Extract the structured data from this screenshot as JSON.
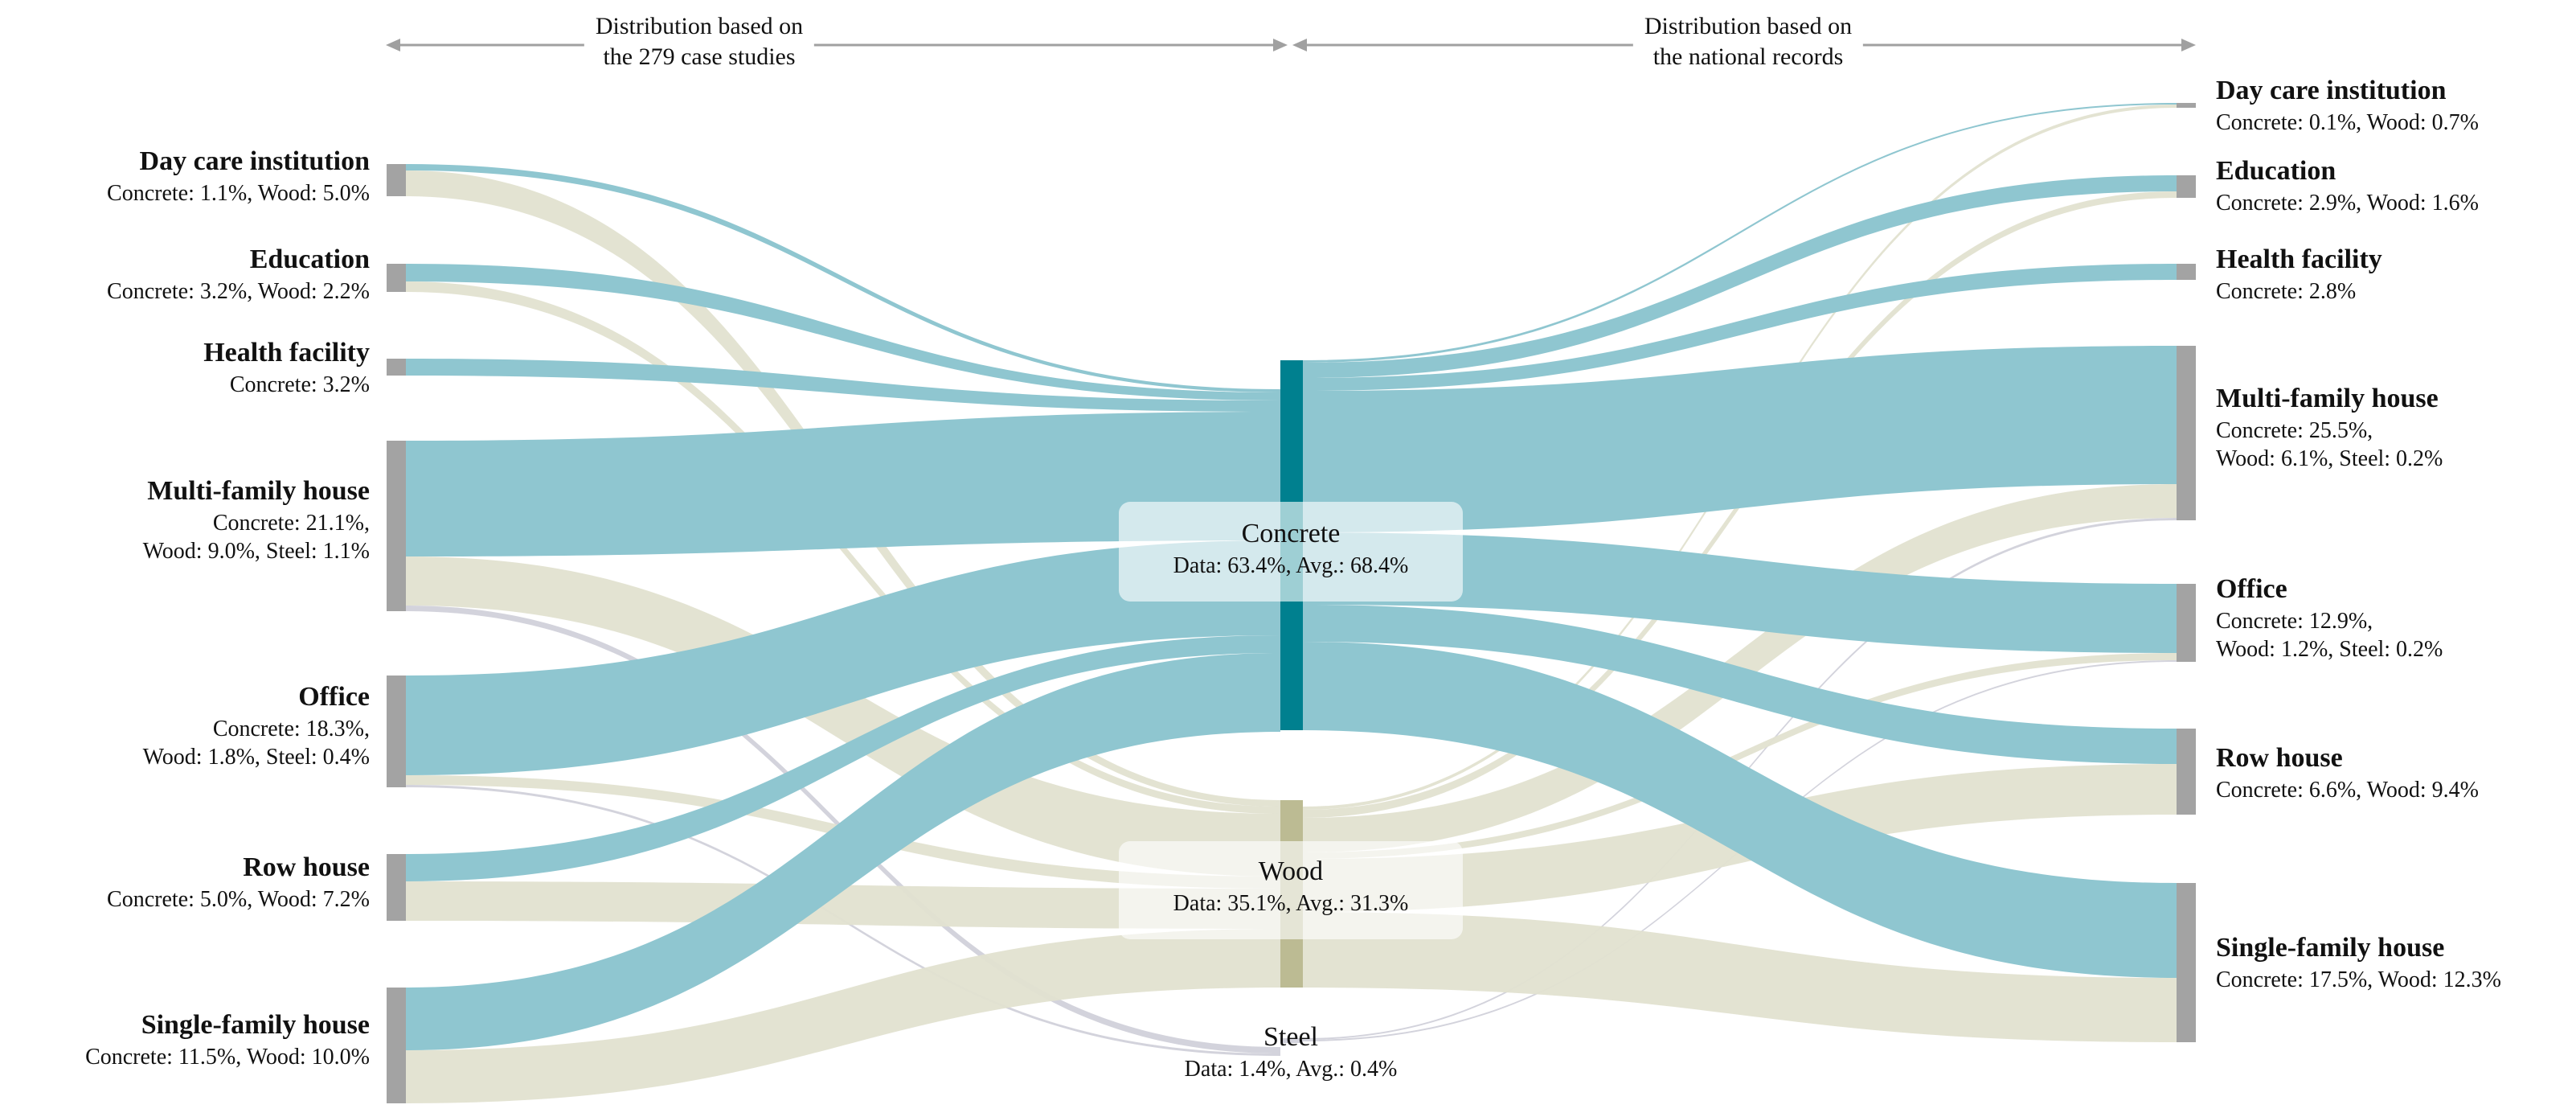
{
  "headers": {
    "left": [
      "Distribution based on",
      "the 279 case studies"
    ],
    "right": [
      "Distribution based on",
      "the national records"
    ]
  },
  "colors": {
    "concrete": "#8fc6d0",
    "concrete_node": "#00808f",
    "wood": "#e2e2d0",
    "wood_node": "#bcbb93",
    "steel": "#d3d3dc",
    "side_node": "#a3a3a3"
  },
  "left_nodes": [
    {
      "title": "Day care institution",
      "lines": [
        "Concrete: 1.1%, Wood: 5.0%"
      ]
    },
    {
      "title": "Education",
      "lines": [
        "Concrete: 3.2%, Wood: 2.2%"
      ]
    },
    {
      "title": "Health facility",
      "lines": [
        "Concrete: 3.2%"
      ]
    },
    {
      "title": "Multi-family house",
      "lines": [
        "Concrete: 21.1%,",
        "Wood: 9.0%, Steel: 1.1%"
      ]
    },
    {
      "title": "Office",
      "lines": [
        "Concrete: 18.3%,",
        "Wood: 1.8%, Steel: 0.4%"
      ]
    },
    {
      "title": "Row house",
      "lines": [
        "Concrete: 5.0%, Wood: 7.2%"
      ]
    },
    {
      "title": "Single-family house",
      "lines": [
        "Concrete: 11.5%, Wood: 10.0%"
      ]
    }
  ],
  "right_nodes": [
    {
      "title": "Day care institution",
      "lines": [
        "Concrete: 0.1%, Wood: 0.7%"
      ]
    },
    {
      "title": "Education",
      "lines": [
        "Concrete: 2.9%, Wood: 1.6%"
      ]
    },
    {
      "title": "Health facility",
      "lines": [
        "Concrete: 2.8%"
      ]
    },
    {
      "title": "Multi-family house",
      "lines": [
        "Concrete: 25.5%,",
        "Wood: 6.1%, Steel: 0.2%"
      ]
    },
    {
      "title": "Office",
      "lines": [
        "Concrete: 12.9%,",
        "Wood: 1.2%, Steel: 0.2%"
      ]
    },
    {
      "title": "Row house",
      "lines": [
        "Concrete: 6.6%, Wood: 9.4%"
      ]
    },
    {
      "title": "Single-family house",
      "lines": [
        "Concrete: 17.5%, Wood: 12.3%"
      ]
    }
  ],
  "materials": [
    {
      "name": "Concrete",
      "summary": "Data: 63.4%, Avg.: 68.4%"
    },
    {
      "name": "Wood",
      "summary": "Data: 35.1%, Avg.: 31.3%"
    },
    {
      "name": "Steel",
      "summary": "Data: 1.4%, Avg.: 0.4%"
    }
  ]
}
